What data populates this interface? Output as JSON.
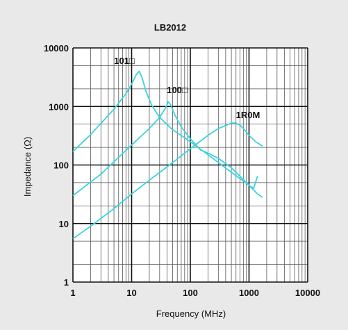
{
  "chart_data": {
    "type": "line",
    "title": "LB2012",
    "xlabel": "Frequency (MHz)",
    "ylabel": "Impedance (Ω)",
    "x_scale": "log",
    "y_scale": "log",
    "xlim": [
      1,
      10000
    ],
    "ylim": [
      1,
      10000
    ],
    "x_ticks": [
      "1",
      "10",
      "100",
      "1000",
      "10000"
    ],
    "y_ticks": [
      "1",
      "10",
      "100",
      "1000",
      "10000"
    ],
    "grid": true,
    "background": "#ffffff",
    "line_color": "#39d3e0",
    "series": [
      {
        "name": "101□",
        "x": [
          1,
          2,
          5,
          8,
          10,
          12,
          13.5,
          15,
          18,
          22,
          30,
          50,
          100,
          200,
          500,
          1000,
          1200,
          1400
        ],
        "y": [
          170,
          330,
          900,
          1650,
          2400,
          3500,
          4000,
          3100,
          1700,
          1050,
          650,
          400,
          250,
          150,
          75,
          45,
          40,
          65
        ]
      },
      {
        "name": "100□",
        "x": [
          1,
          3,
          10,
          20,
          30,
          38,
          42,
          46,
          55,
          70,
          100,
          150,
          200,
          300,
          500,
          1000,
          1400,
          1700
        ],
        "y": [
          30,
          70,
          220,
          420,
          650,
          950,
          1200,
          1080,
          700,
          450,
          280,
          180,
          160,
          130,
          90,
          45,
          32,
          28
        ]
      },
      {
        "name": "1R0M",
        "x": [
          1,
          2,
          5,
          10,
          20,
          50,
          100,
          200,
          300,
          500,
          600,
          700,
          800,
          1000,
          1300,
          1700
        ],
        "y": [
          5.5,
          9,
          18,
          32,
          55,
          110,
          190,
          320,
          420,
          520,
          520,
          480,
          420,
          320,
          250,
          210
        ]
      }
    ]
  }
}
